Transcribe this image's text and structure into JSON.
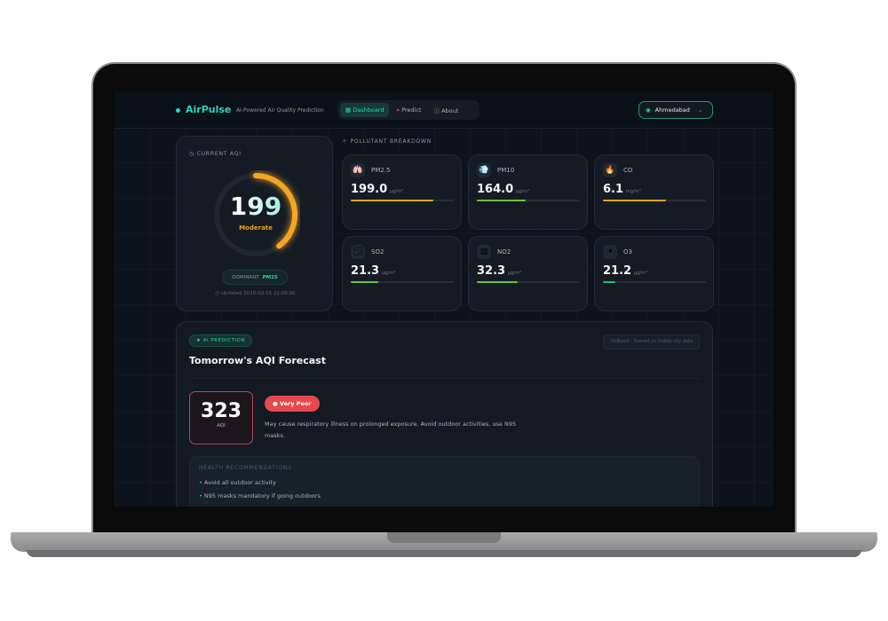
{
  "brand": {
    "name": "AirPulse",
    "tagline": "AI-Powered Air Quality Prediction"
  },
  "nav": [
    {
      "label": "Dashboard",
      "icon": "grid-icon",
      "active": true
    },
    {
      "label": "Predict",
      "icon": "search-icon"
    },
    {
      "label": "About",
      "icon": "info-icon"
    }
  ],
  "location": {
    "value": "Ahmedabad",
    "icon": "map-pin-icon"
  },
  "current": {
    "label": "CURRENT AQI",
    "aqi": "199",
    "category": "Moderate",
    "gauge_fraction": 0.398,
    "dominant_label": "DOMINANT",
    "dominant_value": "PM25",
    "updated": "Updated 2026-03-15 22:00:00"
  },
  "breakdown_label": "POLLUTANT BREAKDOWN",
  "pollutants": [
    {
      "name": "PM2.5",
      "value": "199.0",
      "unit": "µg/m³",
      "fill": 0.8,
      "color": "#f0a31f",
      "icon": "🫁"
    },
    {
      "name": "PM10",
      "value": "164.0",
      "unit": "µg/m³",
      "fill": 0.47,
      "color": "#6cc23a",
      "icon": "💨"
    },
    {
      "name": "CO",
      "value": "6.1",
      "unit": "mg/m³",
      "fill": 0.61,
      "color": "#f0a31f",
      "icon": "🔥"
    },
    {
      "name": "SO2",
      "value": "21.3",
      "unit": "µg/m³",
      "fill": 0.27,
      "color": "#6cc23a",
      "icon": "🌫"
    },
    {
      "name": "NO2",
      "value": "32.3",
      "unit": "µg/m³",
      "fill": 0.4,
      "color": "#6cc23a",
      "icon": "▧"
    },
    {
      "name": "O3",
      "value": "21.2",
      "unit": "µg/m³",
      "fill": 0.12,
      "color": "#22c06a",
      "icon": "☀"
    }
  ],
  "forecast": {
    "badge": "AI PREDICTION",
    "model": "XGBoost · Trained on Indian city data",
    "title": "Tomorrow's AQI Forecast",
    "aqi": "323",
    "aqi_label": "AQI",
    "category": "Very Poor",
    "category_color": "#e5484d",
    "description": "May cause respiratory illness on prolonged exposure. Avoid outdoor activities, use N95 masks.",
    "health_title": "HEALTH RECOMMENDATIONS",
    "recommendations": [
      "Avoid all outdoor activity",
      "N95 masks mandatory if going outdoors"
    ]
  }
}
